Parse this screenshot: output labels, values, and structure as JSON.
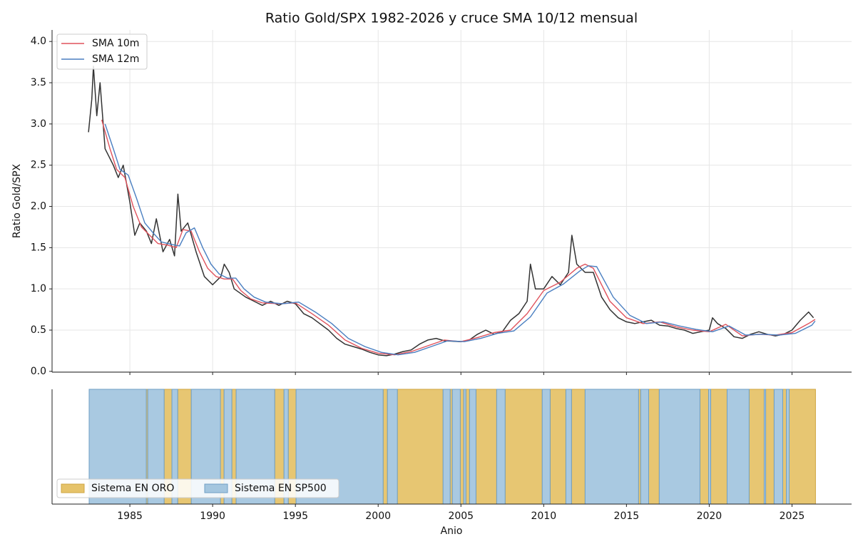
{
  "chart_data": [
    {
      "type": "line",
      "title": "Ratio Gold/SPX 1982-2026 y cruce SMA 10/12 mensual",
      "ylabel": "Ratio Gold/SPX",
      "xlim": [
        1980.3,
        2028.6
      ],
      "ylim": [
        -0.01,
        4.14
      ],
      "xticks": [
        1985,
        1990,
        1995,
        2000,
        2005,
        2010,
        2015,
        2020,
        2025
      ],
      "yticks": [
        {
          "value": 0,
          "label": "0.0"
        },
        0.5,
        {
          "value": 1,
          "label": "1.0"
        },
        1.5,
        {
          "value": 2,
          "label": "2.0"
        },
        2.5,
        {
          "value": 3,
          "label": "3.0"
        },
        3.5,
        {
          "value": 4,
          "label": "4.0"
        }
      ],
      "grid": true,
      "legend": "upper left",
      "series": [
        {
          "color": "#333333",
          "x": [
            1982.5,
            1982.7,
            1982.8,
            1983.0,
            1983.2,
            1983.5,
            1984.0,
            1984.3,
            1984.6,
            1985.0,
            1985.3,
            1985.6,
            1986.0,
            1986.3,
            1986.6,
            1987.0,
            1987.4,
            1987.7,
            1987.9,
            1988.1,
            1988.5,
            1989.0,
            1989.5,
            1990.0,
            1990.5,
            1990.7,
            1991.0,
            1991.3,
            1992.0,
            1992.5,
            1993.0,
            1993.5,
            1994.0,
            1994.5,
            1995.0,
            1995.5,
            1996.0,
            1997.0,
            1997.5,
            1998.0,
            1998.5,
            1999.0,
            1999.5,
            2000.0,
            2000.5,
            2001.0,
            2001.5,
            2002.0,
            2002.5,
            2003.0,
            2003.5,
            2004.0,
            2005.0,
            2005.5,
            2006.0,
            2006.5,
            2007.0,
            2007.5,
            2008.0,
            2008.5,
            2009.0,
            2009.2,
            2009.5,
            2010.0,
            2010.5,
            2011.0,
            2011.5,
            2011.7,
            2012.0,
            2012.5,
            2013.0,
            2013.5,
            2014.0,
            2014.5,
            2015.0,
            2015.5,
            2016.0,
            2016.5,
            2017.0,
            2017.5,
            2018.0,
            2018.5,
            2019.0,
            2019.5,
            2020.0,
            2020.2,
            2020.5,
            2021.0,
            2021.5,
            2022.0,
            2022.5,
            2023.0,
            2023.5,
            2024.0,
            2024.5,
            2025.0,
            2025.5,
            2026.0,
            2026.3
          ],
          "values": [
            2.9,
            3.3,
            3.7,
            3.1,
            3.5,
            2.7,
            2.5,
            2.35,
            2.5,
            2.05,
            1.65,
            1.8,
            1.7,
            1.55,
            1.85,
            1.45,
            1.6,
            1.4,
            2.15,
            1.7,
            1.8,
            1.45,
            1.15,
            1.05,
            1.15,
            1.3,
            1.2,
            1.0,
            0.9,
            0.85,
            0.8,
            0.85,
            0.8,
            0.85,
            0.82,
            0.7,
            0.65,
            0.5,
            0.4,
            0.33,
            0.3,
            0.27,
            0.23,
            0.2,
            0.19,
            0.21,
            0.24,
            0.26,
            0.33,
            0.38,
            0.4,
            0.37,
            0.36,
            0.38,
            0.45,
            0.5,
            0.45,
            0.48,
            0.62,
            0.7,
            0.85,
            1.3,
            1.0,
            1.0,
            1.15,
            1.05,
            1.2,
            1.65,
            1.3,
            1.2,
            1.2,
            0.9,
            0.75,
            0.65,
            0.6,
            0.58,
            0.6,
            0.62,
            0.56,
            0.55,
            0.52,
            0.5,
            0.46,
            0.48,
            0.5,
            0.65,
            0.58,
            0.52,
            0.42,
            0.4,
            0.45,
            0.48,
            0.45,
            0.43,
            0.45,
            0.5,
            0.62,
            0.72,
            0.65
          ]
        },
        {
          "name": "SMA 10m",
          "color": "#e0525c",
          "x": [
            1983.3,
            1983.8,
            1984.2,
            1984.7,
            1985.2,
            1985.7,
            1986.2,
            1986.7,
            1987.3,
            1987.8,
            1988.2,
            1988.7,
            1989.2,
            1989.7,
            1990.2,
            1990.7,
            1991.2,
            1991.7,
            1992.3,
            1993.0,
            1994.0,
            1995.0,
            1996.0,
            1997.0,
            1998.0,
            1999.0,
            2000.0,
            2001.0,
            2002.0,
            2003.0,
            2004.0,
            2005.0,
            2006.0,
            2007.0,
            2008.0,
            2009.0,
            2010.0,
            2011.0,
            2012.0,
            2012.5,
            2013.0,
            2014.0,
            2015.0,
            2016.0,
            2017.0,
            2018.0,
            2019.0,
            2020.0,
            2021.0,
            2022.0,
            2023.0,
            2024.0,
            2025.0,
            2026.0,
            2026.4
          ],
          "values": [
            3.05,
            2.7,
            2.45,
            2.35,
            2.0,
            1.75,
            1.65,
            1.55,
            1.53,
            1.5,
            1.72,
            1.7,
            1.45,
            1.25,
            1.15,
            1.12,
            1.12,
            0.98,
            0.88,
            0.83,
            0.82,
            0.83,
            0.7,
            0.56,
            0.38,
            0.28,
            0.22,
            0.2,
            0.24,
            0.31,
            0.38,
            0.36,
            0.41,
            0.47,
            0.5,
            0.7,
            0.98,
            1.08,
            1.25,
            1.3,
            1.25,
            0.85,
            0.65,
            0.58,
            0.6,
            0.54,
            0.5,
            0.48,
            0.57,
            0.43,
            0.45,
            0.44,
            0.47,
            0.58,
            0.63
          ]
        },
        {
          "name": "SMA 12m",
          "color": "#4a7fc1",
          "x": [
            1983.5,
            1984.0,
            1984.4,
            1984.9,
            1985.4,
            1985.9,
            1986.4,
            1986.9,
            1987.5,
            1988.0,
            1988.4,
            1988.9,
            1989.4,
            1989.9,
            1990.4,
            1990.9,
            1991.4,
            1991.9,
            1992.5,
            1993.2,
            1994.2,
            1995.2,
            1996.2,
            1997.2,
            1998.2,
            1999.2,
            2000.2,
            2001.2,
            2002.2,
            2003.2,
            2004.2,
            2005.2,
            2006.2,
            2007.2,
            2008.2,
            2009.2,
            2010.2,
            2011.2,
            2012.2,
            2012.7,
            2013.2,
            2014.2,
            2015.2,
            2016.2,
            2017.2,
            2018.2,
            2019.2,
            2020.2,
            2021.2,
            2022.2,
            2023.2,
            2024.2,
            2025.2,
            2026.2,
            2026.4
          ],
          "values": [
            3.0,
            2.7,
            2.45,
            2.38,
            2.1,
            1.8,
            1.68,
            1.57,
            1.54,
            1.52,
            1.68,
            1.74,
            1.5,
            1.3,
            1.18,
            1.13,
            1.13,
            1.0,
            0.9,
            0.84,
            0.82,
            0.84,
            0.72,
            0.58,
            0.4,
            0.3,
            0.23,
            0.2,
            0.23,
            0.3,
            0.37,
            0.36,
            0.4,
            0.46,
            0.49,
            0.66,
            0.95,
            1.06,
            1.22,
            1.28,
            1.27,
            0.9,
            0.68,
            0.58,
            0.6,
            0.55,
            0.51,
            0.48,
            0.55,
            0.44,
            0.45,
            0.44,
            0.46,
            0.56,
            0.61
          ]
        }
      ]
    },
    {
      "type": "span",
      "xlabel": "Anio",
      "xlim": [
        1980.3,
        2028.6
      ],
      "xticks": [
        1985,
        1990,
        1995,
        2000,
        2005,
        2010,
        2015,
        2020,
        2025
      ],
      "legend": "lower left",
      "series": [
        {
          "name": "Sistema EN ORO",
          "color": "#e6c36a",
          "edgecolor": "#cfa640",
          "spans": [
            [
              1985.99,
              1986.08
            ],
            [
              1987.07,
              1987.54
            ],
            [
              1987.89,
              1988.71
            ],
            [
              1990.47,
              1990.69
            ],
            [
              1991.16,
              1991.42
            ],
            [
              1993.75,
              1994.31
            ],
            [
              1994.57,
              1995.04
            ],
            [
              2000.3,
              2000.56
            ],
            [
              2001.16,
              2003.92
            ],
            [
              2004.35,
              2004.48
            ],
            [
              2004.96,
              2005.17
            ],
            [
              2005.3,
              2005.52
            ],
            [
              2005.91,
              2007.16
            ],
            [
              2007.67,
              2009.91
            ],
            [
              2010.39,
              2011.34
            ],
            [
              2011.68,
              2012.5
            ],
            [
              2015.73,
              2015.86
            ],
            [
              2016.34,
              2016.98
            ],
            [
              2019.44,
              2019.96
            ],
            [
              2020.09,
              2021.08
            ],
            [
              2022.41,
              2023.32
            ],
            [
              2023.41,
              2023.92
            ],
            [
              2024.44,
              2024.66
            ],
            [
              2024.83,
              2026.42
            ]
          ]
        },
        {
          "name": "Sistema EN SP500",
          "color": "#a4c6df",
          "edgecolor": "#6f9fc4",
          "spans": [
            [
              1982.54,
              1985.99
            ],
            [
              1986.08,
              1987.07
            ],
            [
              1987.54,
              1987.89
            ],
            [
              1988.71,
              1990.47
            ],
            [
              1990.69,
              1991.16
            ],
            [
              1991.42,
              1993.75
            ],
            [
              1994.31,
              1994.57
            ],
            [
              1995.04,
              2000.3
            ],
            [
              2000.56,
              2001.16
            ],
            [
              2003.92,
              2004.35
            ],
            [
              2004.48,
              2004.96
            ],
            [
              2005.17,
              2005.3
            ],
            [
              2005.52,
              2005.91
            ],
            [
              2007.16,
              2007.67
            ],
            [
              2009.91,
              2010.39
            ],
            [
              2011.34,
              2011.68
            ],
            [
              2012.5,
              2015.73
            ],
            [
              2015.86,
              2016.34
            ],
            [
              2016.98,
              2019.44
            ],
            [
              2019.96,
              2020.09
            ],
            [
              2021.08,
              2022.41
            ],
            [
              2023.32,
              2023.41
            ],
            [
              2023.92,
              2024.44
            ],
            [
              2024.66,
              2024.83
            ]
          ]
        }
      ]
    }
  ]
}
